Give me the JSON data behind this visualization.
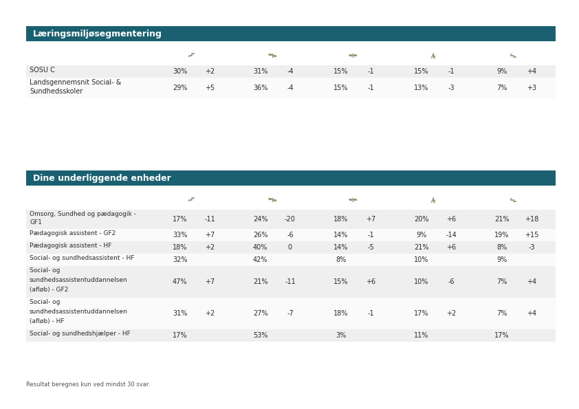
{
  "title1": "Læringsmiljøsegmentering",
  "title2": "Dine underliggende enheder",
  "header_bg": "#1a6070",
  "header_text_color": "#ffffff",
  "row_bg_even": "#efefef",
  "row_bg_odd": "#fafafa",
  "text_color": "#2a2a2a",
  "bg_color": "#ffffff",
  "icon_color": "#8a9a72",
  "footer": "Resultat beregnes kun ved mindst 30 svar.",
  "top_table_rows": [
    [
      "SOSU C",
      "30%",
      "+2",
      "31%",
      "-4",
      "15%",
      "-1",
      "15%",
      "-1",
      "9%",
      "+4"
    ],
    [
      "Landsgennemsnit Social- &\nSundhedsskoler",
      "29%",
      "+5",
      "36%",
      "-4",
      "15%",
      "-1",
      "13%",
      "-3",
      "7%",
      "+3"
    ]
  ],
  "bottom_table_rows": [
    [
      "Omsorg, Sundhed og pædagogik -\nGF1",
      "17%",
      "-11",
      "24%",
      "-20",
      "18%",
      "+7",
      "20%",
      "+6",
      "21%",
      "+18"
    ],
    [
      "Pædagogisk assistent - GF2",
      "33%",
      "+7",
      "26%",
      "-6",
      "14%",
      "-1",
      "9%",
      "-14",
      "19%",
      "+15"
    ],
    [
      "Pædagogisk assistent - HF",
      "18%",
      "+2",
      "40%",
      "0",
      "14%",
      "-5",
      "21%",
      "+6",
      "8%",
      "-3"
    ],
    [
      "Social- og sundhedsassistent - HF",
      "32%",
      "",
      "42%",
      "",
      "8%",
      "",
      "10%",
      "",
      "9%",
      ""
    ],
    [
      "Social- og\nsundhedsassistentuddannelsen\n(afløb) - GF2",
      "47%",
      "+7",
      "21%",
      "-11",
      "15%",
      "+6",
      "10%",
      "-6",
      "7%",
      "+4"
    ],
    [
      "Social- og\nsundhedsassistentuddannelsen\n(afløb) - HF",
      "31%",
      "+2",
      "27%",
      "-7",
      "18%",
      "-1",
      "17%",
      "+2",
      "7%",
      "+4"
    ],
    [
      "Social- og sundhedshjælper - HF",
      "17%",
      "",
      "53%",
      "",
      "3%",
      "",
      "11%",
      "",
      "17%",
      ""
    ]
  ]
}
